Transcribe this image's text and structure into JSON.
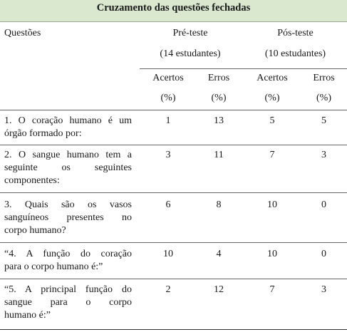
{
  "title": "Cruzamento das questões fechadas",
  "header": {
    "questoes": "Questões",
    "pre_teste": "Pré-teste",
    "pre_teste_n": "(14 estudantes)",
    "pos_teste": "Pós-teste",
    "pos_teste_n": "(10 estudantes)",
    "acertos": "Acertos",
    "erros": "Erros",
    "pct": "(%)"
  },
  "rows": [
    {
      "lines": [
        "1. O coração humano é um",
        "órgão formado por:"
      ],
      "pre_acertos": "1",
      "pre_erros": "13",
      "pos_acertos": "5",
      "pos_erros": "5"
    },
    {
      "lines": [
        "2. O sangue humano tem a",
        "seguinte os seguintes",
        "componentes:"
      ],
      "pre_acertos": "3",
      "pre_erros": "11",
      "pos_acertos": "7",
      "pos_erros": "3"
    },
    {
      "lines": [
        "3. Quais são os vasos",
        "sanguíneos presentes no",
        "corpo humano?"
      ],
      "pre_acertos": "6",
      "pre_erros": "8",
      "pos_acertos": "10",
      "pos_erros": "0"
    },
    {
      "lines": [
        "“4. A função do coração",
        "para o corpo humano é:”"
      ],
      "pre_acertos": "10",
      "pre_erros": "4",
      "pos_acertos": "10",
      "pos_erros": "0"
    },
    {
      "lines": [
        "“5. A principal função do",
        "sangue para o corpo",
        "humano é:”"
      ],
      "pre_acertos": "2",
      "pre_erros": "12",
      "pos_acertos": "7",
      "pos_erros": "3"
    }
  ]
}
